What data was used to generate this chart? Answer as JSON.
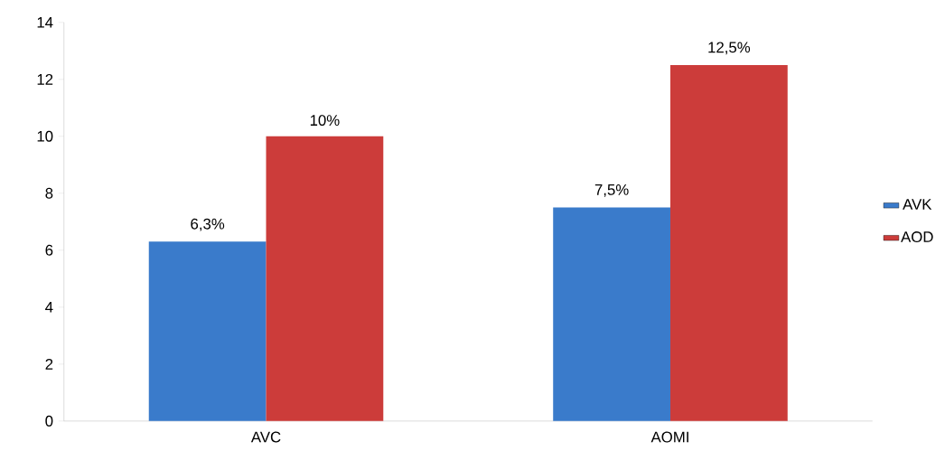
{
  "chart_data": {
    "type": "bar",
    "categories": [
      "AVC",
      "AOMI"
    ],
    "series": [
      {
        "name": "AVK",
        "color": "#3a7bcb",
        "values": [
          6.3,
          7.5
        ],
        "value_labels": [
          "6,3%",
          "7,5%"
        ]
      },
      {
        "name": "AOD",
        "color": "#cc3c3a",
        "values": [
          10,
          12.5
        ],
        "value_labels": [
          "10%",
          "12,5%"
        ]
      }
    ],
    "ylim": [
      0,
      14
    ],
    "yticks": [
      0,
      2,
      4,
      6,
      8,
      10,
      12,
      14
    ],
    "legend": "right"
  }
}
